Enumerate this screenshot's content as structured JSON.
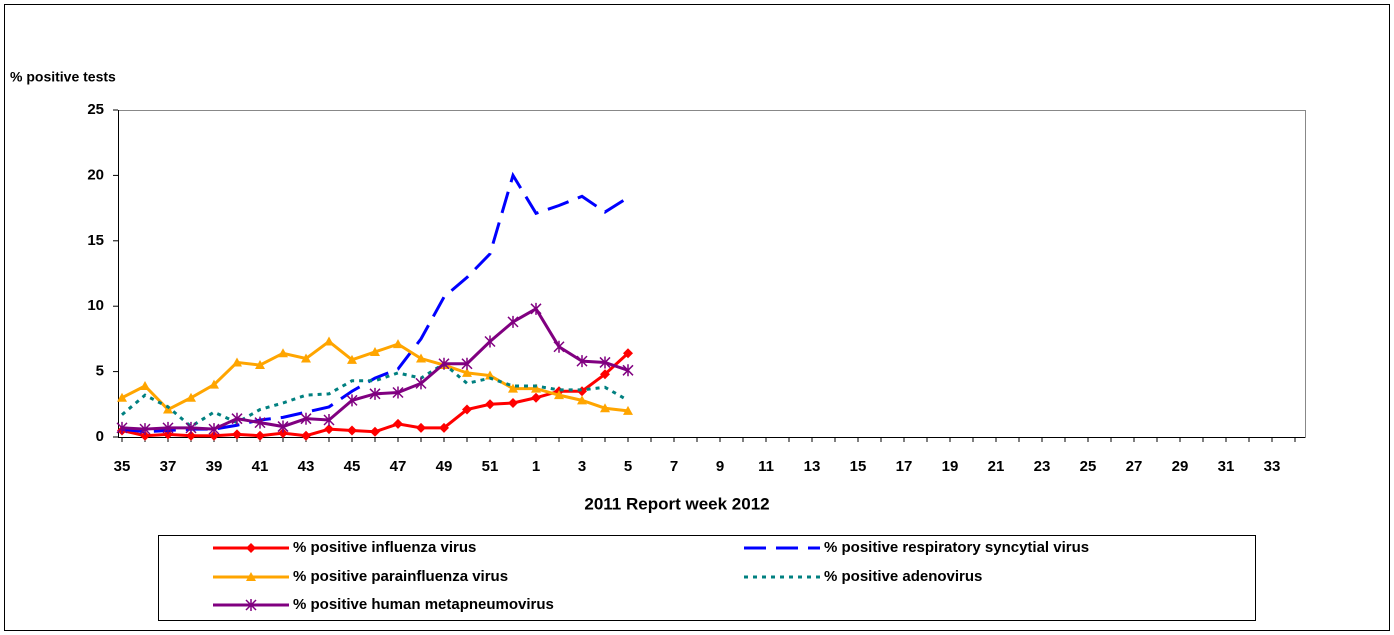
{
  "chart_data": {
    "type": "line",
    "y_label": "% positive tests",
    "x_label": "2011 Report week   2012",
    "categories": [
      "35",
      null,
      "37",
      null,
      "39",
      null,
      "41",
      null,
      "43",
      null,
      "45",
      null,
      "47",
      null,
      "49",
      null,
      "51",
      null,
      "1",
      null,
      "3",
      null,
      "5",
      null,
      "7",
      null,
      "9",
      null,
      "11",
      null,
      "13",
      null,
      "15",
      null,
      "17",
      null,
      "19",
      null,
      "21",
      null,
      "23",
      null,
      "25",
      null,
      "27",
      null,
      "29",
      null,
      "31",
      null,
      "33",
      null
    ],
    "ylim": [
      0,
      25
    ],
    "yticks": [
      0,
      5,
      10,
      15,
      20,
      25
    ],
    "series": [
      {
        "name": "% positive influenza virus",
        "color": "#ff0000",
        "dash": "solid",
        "marker": "diamond",
        "values": [
          0.5,
          0.1,
          0.2,
          0.1,
          0.1,
          0.2,
          0.1,
          0.3,
          0.1,
          0.6,
          0.5,
          0.4,
          1.0,
          0.7,
          0.7,
          2.1,
          2.5,
          2.6,
          3.0,
          3.5,
          3.5,
          4.8,
          6.4,
          null,
          null,
          null,
          null,
          null,
          null,
          null,
          null,
          null,
          null,
          null,
          null,
          null,
          null,
          null,
          null,
          null,
          null,
          null,
          null,
          null,
          null,
          null,
          null,
          null,
          null,
          null,
          null,
          null
        ]
      },
      {
        "name": "% positive respiratory syncytial virus",
        "color": "#0000ff",
        "dash": "long",
        "marker": "none",
        "values": [
          0.6,
          0.4,
          0.5,
          0.6,
          0.6,
          0.9,
          1.3,
          1.5,
          1.9,
          2.3,
          3.5,
          4.5,
          5.2,
          7.5,
          10.7,
          12.2,
          14.0,
          20.0,
          17.1,
          17.7,
          18.4,
          17.2,
          18.3,
          null,
          null,
          null,
          null,
          null,
          null,
          null,
          null,
          null,
          null,
          null,
          null,
          null,
          null,
          null,
          null,
          null,
          null,
          null,
          null,
          null,
          null,
          null,
          null,
          null,
          null,
          null,
          null,
          null
        ]
      },
      {
        "name": "% positive parainfluenza virus",
        "color": "#ffa500",
        "dash": "solid",
        "marker": "triangle",
        "values": [
          3.0,
          3.9,
          2.1,
          3.0,
          4.0,
          5.7,
          5.5,
          6.4,
          6.0,
          7.3,
          5.9,
          6.5,
          7.1,
          6.0,
          5.5,
          4.9,
          4.7,
          3.7,
          3.7,
          3.2,
          2.8,
          2.2,
          2.0,
          null,
          null,
          null,
          null,
          null,
          null,
          null,
          null,
          null,
          null,
          null,
          null,
          null,
          null,
          null,
          null,
          null,
          null,
          null,
          null,
          null,
          null,
          null,
          null,
          null,
          null,
          null,
          null,
          null
        ]
      },
      {
        "name": "% positive adenovirus",
        "color": "#008080",
        "dash": "dot",
        "marker": "none",
        "values": [
          1.7,
          3.2,
          2.3,
          0.8,
          1.9,
          1.1,
          2.1,
          2.6,
          3.2,
          3.3,
          4.3,
          4.3,
          4.9,
          4.5,
          5.6,
          4.1,
          4.5,
          3.9,
          3.9,
          3.6,
          3.6,
          3.8,
          2.8,
          null,
          null,
          null,
          null,
          null,
          null,
          null,
          null,
          null,
          null,
          null,
          null,
          null,
          null,
          null,
          null,
          null,
          null,
          null,
          null,
          null,
          null,
          null,
          null,
          null,
          null,
          null,
          null,
          null
        ]
      },
      {
        "name": "% positive human metapneumovirus",
        "color": "#800080",
        "dash": "solid",
        "marker": "star",
        "values": [
          0.7,
          0.6,
          0.7,
          0.7,
          0.6,
          1.4,
          1.1,
          0.8,
          1.4,
          1.3,
          2.8,
          3.3,
          3.4,
          4.1,
          5.6,
          5.6,
          7.3,
          8.8,
          9.8,
          6.9,
          5.8,
          5.7,
          5.1,
          null,
          null,
          null,
          null,
          null,
          null,
          null,
          null,
          null,
          null,
          null,
          null,
          null,
          null,
          null,
          null,
          null,
          null,
          null,
          null,
          null,
          null,
          null,
          null,
          null,
          null,
          null,
          null,
          null
        ]
      }
    ]
  }
}
